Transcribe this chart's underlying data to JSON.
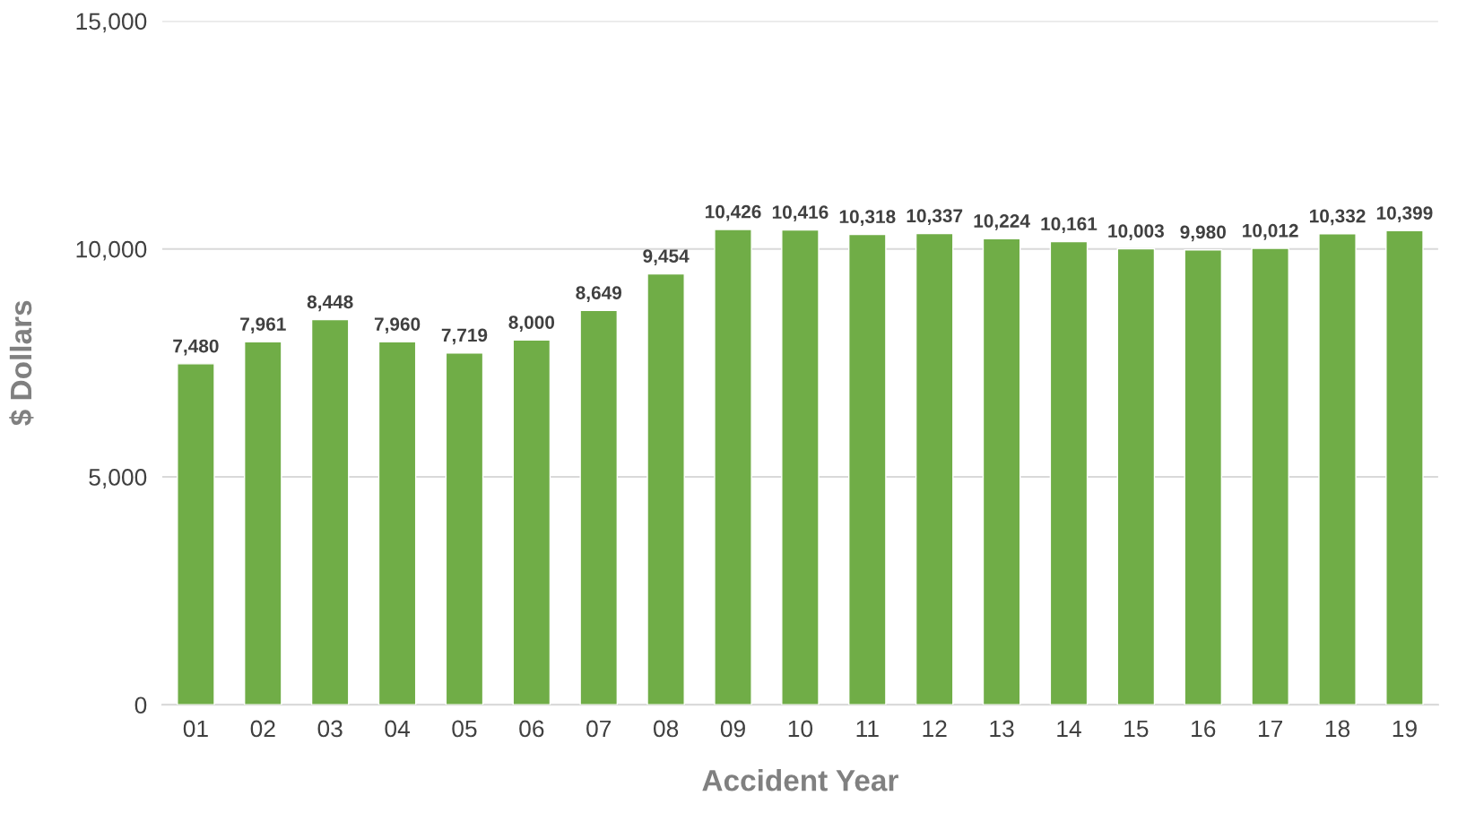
{
  "chart_data": {
    "type": "bar",
    "xlabel": "Accident Year",
    "ylabel": "$ Dollars",
    "categories": [
      "01",
      "02",
      "03",
      "04",
      "05",
      "06",
      "07",
      "08",
      "09",
      "10",
      "11",
      "12",
      "13",
      "14",
      "15",
      "16",
      "17",
      "18",
      "19"
    ],
    "values": [
      7480,
      7961,
      8448,
      7960,
      7719,
      8000,
      8649,
      9454,
      10426,
      10416,
      10318,
      10337,
      10224,
      10161,
      10003,
      9980,
      10012,
      10332,
      10399
    ],
    "color": "#70ad47",
    "ylim": [
      0,
      15000
    ],
    "yticks": [
      {
        "value": 0,
        "label": "0"
      },
      {
        "value": 5000,
        "label": "5,000"
      },
      {
        "value": 10000,
        "label": "10,000"
      },
      {
        "value": 15000,
        "label": "15,000"
      }
    ],
    "value_labels": [
      "7,480",
      "7,961",
      "8,448",
      "7,960",
      "7,719",
      "8,000",
      "8,649",
      "9,454",
      "10,426",
      "10,416",
      "10,318",
      "10,337",
      "10,224",
      "10,161",
      "10,003",
      "9,980",
      "10,012",
      "10,332",
      "10,399"
    ],
    "grid": "y",
    "legend": false
  }
}
